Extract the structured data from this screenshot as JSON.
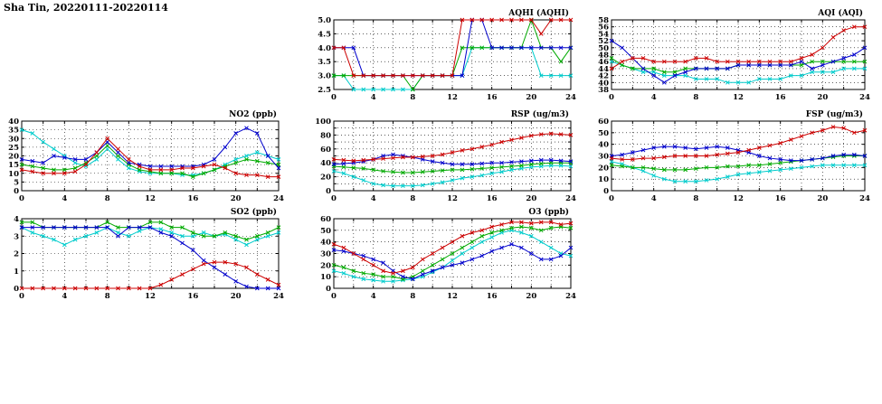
{
  "page_title": "Sha Tin, 20220111-20220114",
  "station": "Sha Tin",
  "date_range": "20220111-20220114",
  "chart_data": [
    {
      "key": "aqhi",
      "type": "line",
      "title": "AQHI (AQHI)",
      "ylim": [
        2.5,
        5.0
      ],
      "ytick_step": 0.5,
      "ylabel_every": 1,
      "ydecimals": 1,
      "xlim": [
        0,
        24
      ],
      "xgrid_step": 2,
      "xtick_label_step": 4,
      "grid": true,
      "legend": "none",
      "series": [
        {
          "name": "cyan",
          "color": "#00cccc",
          "values": [
            3,
            3,
            2.5,
            2.5,
            2.5,
            2.5,
            2.5,
            2.5,
            2.5,
            3,
            3,
            3,
            3,
            3,
            4,
            4,
            4,
            4,
            4,
            4,
            4,
            3,
            3,
            3,
            3
          ]
        },
        {
          "name": "green",
          "color": "#00aa00",
          "values": [
            3,
            3,
            3,
            3,
            3,
            3,
            3,
            3,
            2.5,
            3,
            3,
            3,
            3,
            4,
            4,
            4,
            4,
            4,
            4,
            4,
            5,
            4,
            4,
            3.5,
            4
          ]
        },
        {
          "name": "blue",
          "color": "#0000cc",
          "values": [
            4,
            4,
            4,
            3,
            3,
            3,
            3,
            3,
            3,
            3,
            3,
            3,
            3,
            3,
            5,
            5,
            4,
            4,
            4,
            4,
            4,
            4,
            4,
            4,
            4
          ]
        },
        {
          "name": "red",
          "color": "#cc0000",
          "values": [
            4,
            4,
            3,
            3,
            3,
            3,
            3,
            3,
            3,
            3,
            3,
            3,
            3,
            5,
            5,
            5,
            5,
            5,
            5,
            5,
            5,
            4.5,
            5,
            5,
            5
          ]
        }
      ]
    },
    {
      "key": "aqi",
      "type": "line",
      "title": "AQI (AQI)",
      "ylim": [
        38,
        58
      ],
      "ytick_step": 2,
      "ylabel_every": 1,
      "ydecimals": 0,
      "xlim": [
        0,
        24
      ],
      "xgrid_step": 2,
      "xtick_label_step": 4,
      "grid": true,
      "legend": "none",
      "series": [
        {
          "name": "cyan",
          "color": "#00cccc",
          "values": [
            46,
            45,
            44,
            43,
            43,
            42,
            42,
            42,
            41,
            41,
            41,
            40,
            40,
            40,
            41,
            41,
            41,
            42,
            42,
            43,
            43,
            43,
            44,
            44,
            44
          ]
        },
        {
          "name": "green",
          "color": "#00aa00",
          "values": [
            47,
            45,
            44,
            44,
            44,
            43,
            43,
            44,
            44,
            44,
            44,
            44,
            45,
            45,
            45,
            45,
            45,
            45,
            45,
            46,
            46,
            46,
            46,
            46,
            46
          ]
        },
        {
          "name": "blue",
          "color": "#0000cc",
          "values": [
            52,
            50,
            47,
            44,
            42,
            40,
            42,
            43,
            44,
            44,
            44,
            44,
            45,
            45,
            45,
            45,
            45,
            45,
            46,
            44,
            45,
            46,
            47,
            48,
            50
          ]
        },
        {
          "name": "red",
          "color": "#cc0000",
          "values": [
            44,
            46,
            47,
            47,
            46,
            46,
            46,
            46,
            47,
            47,
            46,
            46,
            46,
            46,
            46,
            46,
            46,
            46,
            47,
            48,
            50,
            53,
            55,
            56,
            56
          ]
        }
      ]
    },
    {
      "key": "no2",
      "type": "line",
      "title": "NO2 (ppb)",
      "ylim": [
        0,
        40
      ],
      "ytick_step": 5,
      "ylabel_every": 1,
      "ydecimals": 0,
      "xlim": [
        0,
        24
      ],
      "xgrid_step": 2,
      "xtick_label_step": 4,
      "grid": true,
      "legend": "none",
      "series": [
        {
          "name": "cyan",
          "color": "#00cccc",
          "values": [
            35,
            33,
            28,
            24,
            20,
            16,
            14,
            18,
            24,
            18,
            13,
            11,
            10,
            10,
            10,
            9,
            9,
            10,
            12,
            15,
            18,
            20,
            22,
            20,
            18
          ]
        },
        {
          "name": "green",
          "color": "#00aa00",
          "values": [
            15,
            14,
            13,
            12,
            12,
            13,
            16,
            20,
            26,
            20,
            15,
            12,
            11,
            10,
            10,
            10,
            8,
            10,
            12,
            14,
            16,
            18,
            17,
            16,
            15
          ]
        },
        {
          "name": "blue",
          "color": "#0000cc",
          "values": [
            18,
            17,
            16,
            20,
            19,
            18,
            18,
            22,
            28,
            22,
            16,
            15,
            14,
            14,
            14,
            14,
            14,
            15,
            18,
            25,
            33,
            36,
            33,
            20,
            13
          ]
        },
        {
          "name": "red",
          "color": "#cc0000",
          "values": [
            12,
            11,
            10,
            10,
            10,
            11,
            15,
            22,
            30,
            24,
            18,
            14,
            12,
            12,
            12,
            13,
            13,
            14,
            15,
            13,
            10,
            9,
            9,
            8,
            8
          ]
        }
      ]
    },
    {
      "key": "rsp",
      "type": "line",
      "title": "RSP (ug/m3)",
      "ylim": [
        0,
        100
      ],
      "ytick_step": 10,
      "ylabel_every": 2,
      "ydecimals": 0,
      "xlim": [
        0,
        24
      ],
      "xgrid_step": 2,
      "xtick_label_step": 4,
      "grid": true,
      "legend": "none",
      "series": [
        {
          "name": "cyan",
          "color": "#00cccc",
          "values": [
            28,
            25,
            20,
            15,
            10,
            8,
            7,
            7,
            7,
            8,
            10,
            12,
            15,
            18,
            20,
            22,
            25,
            27,
            30,
            32,
            34,
            35,
            36,
            36,
            35
          ]
        },
        {
          "name": "green",
          "color": "#00aa00",
          "values": [
            35,
            34,
            33,
            32,
            30,
            28,
            27,
            26,
            26,
            27,
            28,
            29,
            30,
            30,
            31,
            32,
            33,
            34,
            35,
            36,
            38,
            39,
            40,
            40,
            40
          ]
        },
        {
          "name": "blue",
          "color": "#0000cc",
          "values": [
            38,
            39,
            40,
            42,
            45,
            50,
            52,
            50,
            48,
            45,
            42,
            40,
            38,
            38,
            38,
            39,
            40,
            40,
            41,
            42,
            43,
            44,
            44,
            43,
            42
          ]
        },
        {
          "name": "red",
          "color": "#cc0000",
          "values": [
            45,
            44,
            43,
            44,
            45,
            46,
            47,
            48,
            48,
            49,
            50,
            52,
            55,
            58,
            60,
            63,
            66,
            70,
            73,
            76,
            79,
            81,
            82,
            81,
            80
          ]
        }
      ]
    },
    {
      "key": "fsp",
      "type": "line",
      "title": "FSP (ug/m3)",
      "ylim": [
        0,
        60
      ],
      "ytick_step": 10,
      "ylabel_every": 1,
      "ydecimals": 0,
      "xlim": [
        0,
        24
      ],
      "xgrid_step": 2,
      "xtick_label_step": 4,
      "grid": true,
      "legend": "none",
      "series": [
        {
          "name": "cyan",
          "color": "#00cccc",
          "values": [
            25,
            23,
            20,
            17,
            13,
            10,
            8,
            8,
            8,
            9,
            10,
            12,
            14,
            15,
            16,
            17,
            18,
            19,
            20,
            21,
            22,
            22,
            22,
            22,
            22
          ]
        },
        {
          "name": "green",
          "color": "#00aa00",
          "values": [
            22,
            21,
            20,
            20,
            19,
            18,
            18,
            18,
            19,
            20,
            20,
            21,
            21,
            22,
            22,
            23,
            24,
            25,
            26,
            27,
            28,
            29,
            30,
            30,
            30
          ]
        },
        {
          "name": "blue",
          "color": "#0000cc",
          "values": [
            30,
            31,
            33,
            35,
            37,
            38,
            38,
            37,
            36,
            37,
            38,
            37,
            35,
            33,
            30,
            28,
            27,
            26,
            26,
            27,
            28,
            30,
            31,
            31,
            30
          ]
        },
        {
          "name": "red",
          "color": "#cc0000",
          "values": [
            28,
            27,
            27,
            28,
            28,
            29,
            30,
            30,
            30,
            30,
            31,
            32,
            33,
            35,
            37,
            39,
            41,
            44,
            47,
            50,
            52,
            55,
            54,
            50,
            52
          ]
        }
      ]
    },
    {
      "key": "so2",
      "type": "line",
      "title": "SO2 (ppb)",
      "ylim": [
        0,
        4
      ],
      "ytick_step": 1,
      "ylabel_every": 1,
      "ydecimals": 0,
      "xlim": [
        0,
        24
      ],
      "xgrid_step": 2,
      "xtick_label_step": 4,
      "grid": true,
      "legend": "none",
      "series": [
        {
          "name": "cyan",
          "color": "#00cccc",
          "values": [
            3.5,
            3.2,
            3,
            2.8,
            2.5,
            2.8,
            3,
            3.2,
            3.5,
            3.2,
            3,
            3.3,
            3.5,
            3.4,
            3.2,
            3,
            3,
            3.2,
            3,
            3.1,
            2.8,
            2.5,
            2.8,
            3,
            3.2
          ]
        },
        {
          "name": "green",
          "color": "#00aa00",
          "values": [
            3.8,
            3.8,
            3.5,
            3.5,
            3.5,
            3.5,
            3.5,
            3.5,
            3.8,
            3.5,
            3.5,
            3.5,
            3.8,
            3.8,
            3.5,
            3.5,
            3.2,
            3,
            3,
            3.2,
            3,
            2.8,
            3,
            3.2,
            3.5
          ]
        },
        {
          "name": "blue",
          "color": "#0000cc",
          "values": [
            3.5,
            3.5,
            3.5,
            3.5,
            3.5,
            3.5,
            3.5,
            3.5,
            3.5,
            3,
            3.5,
            3.5,
            3.5,
            3.2,
            3,
            2.6,
            2.2,
            1.6,
            1.2,
            0.8,
            0.4,
            0.1,
            0,
            0,
            0
          ]
        },
        {
          "name": "red",
          "color": "#cc0000",
          "values": [
            0,
            0,
            0,
            0,
            0,
            0,
            0,
            0,
            0,
            0,
            0,
            0,
            0,
            0.2,
            0.5,
            0.8,
            1.1,
            1.4,
            1.5,
            1.5,
            1.4,
            1.2,
            0.8,
            0.5,
            0.2
          ]
        }
      ]
    },
    {
      "key": "o3",
      "type": "line",
      "title": "O3 (ppb)",
      "ylim": [
        0,
        60
      ],
      "ytick_step": 10,
      "ylabel_every": 1,
      "ydecimals": 0,
      "xlim": [
        0,
        24
      ],
      "xgrid_step": 2,
      "xtick_label_step": 4,
      "grid": true,
      "legend": "none",
      "series": [
        {
          "name": "cyan",
          "color": "#00cccc",
          "values": [
            15,
            13,
            10,
            8,
            7,
            6,
            6,
            7,
            8,
            10,
            14,
            18,
            24,
            30,
            35,
            40,
            44,
            48,
            50,
            48,
            45,
            40,
            35,
            30,
            28
          ]
        },
        {
          "name": "green",
          "color": "#00aa00",
          "values": [
            20,
            18,
            15,
            13,
            12,
            10,
            10,
            8,
            10,
            15,
            20,
            25,
            30,
            35,
            40,
            45,
            48,
            50,
            52,
            53,
            52,
            50,
            52,
            53,
            52
          ]
        },
        {
          "name": "blue",
          "color": "#0000cc",
          "values": [
            33,
            32,
            30,
            28,
            25,
            22,
            15,
            10,
            8,
            12,
            15,
            18,
            20,
            22,
            25,
            28,
            32,
            35,
            38,
            35,
            30,
            25,
            25,
            28,
            35
          ]
        },
        {
          "name": "red",
          "color": "#cc0000",
          "values": [
            38,
            35,
            30,
            25,
            20,
            15,
            13,
            15,
            18,
            25,
            30,
            35,
            40,
            45,
            48,
            50,
            53,
            55,
            57,
            57,
            56,
            57,
            57,
            55,
            56
          ]
        }
      ]
    }
  ]
}
